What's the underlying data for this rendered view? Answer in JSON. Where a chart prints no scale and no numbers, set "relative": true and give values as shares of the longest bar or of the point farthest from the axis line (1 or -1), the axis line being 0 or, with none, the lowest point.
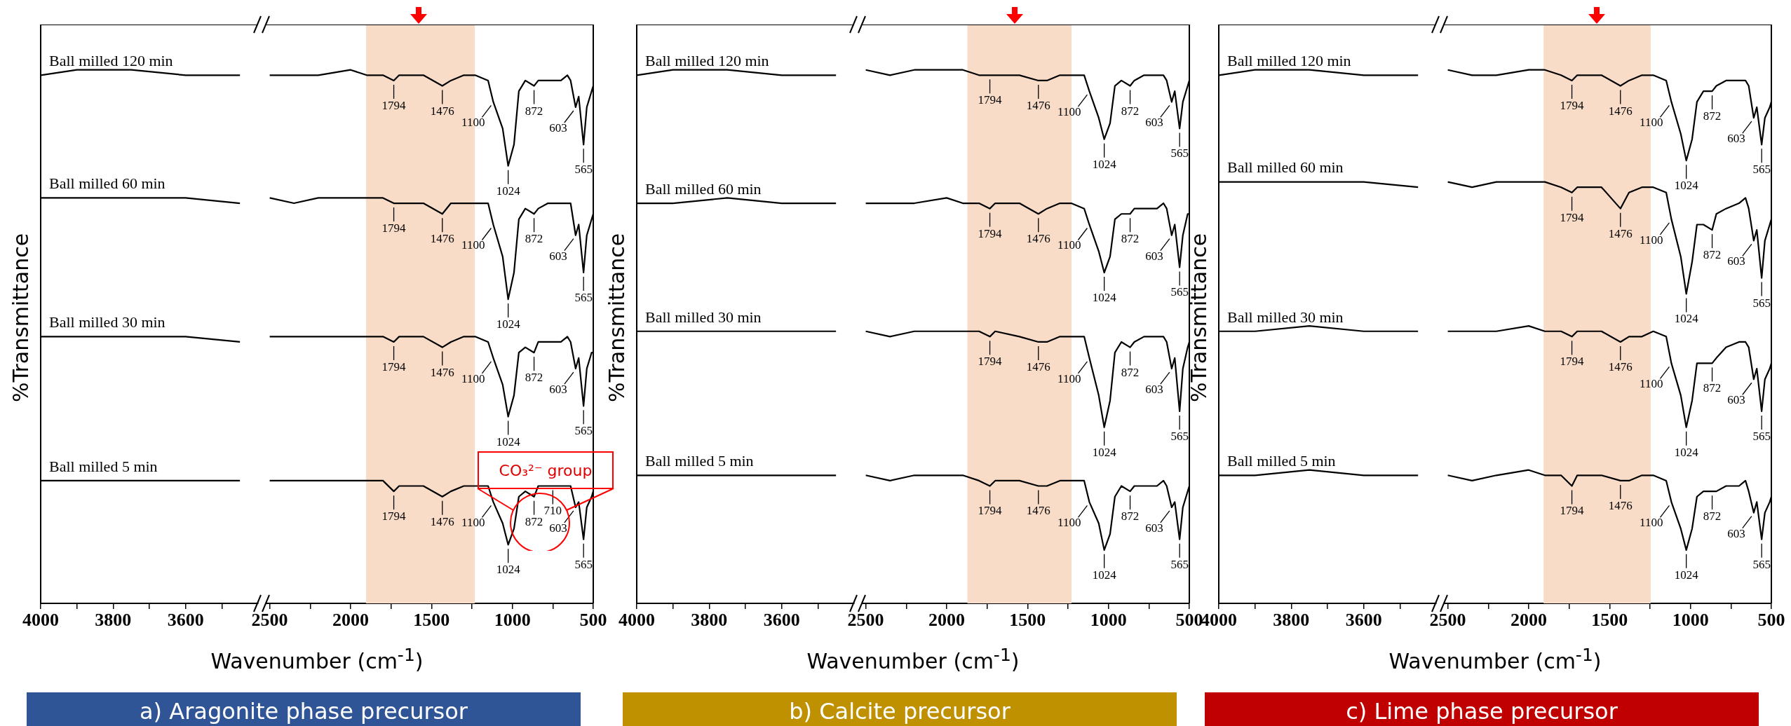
{
  "chart_data": [
    {
      "type": "line",
      "relative": true,
      "marker": "none",
      "ylabel": "%Transmittance",
      "x": [
        4000,
        3900,
        3750,
        3600,
        3450
      ],
      "xlim": [
        4000,
        3400
      ],
      "xticks": [
        4000,
        {
          "value": 3900,
          "label": null
        },
        3800,
        {
          "value": 3700,
          "label": null
        },
        3600,
        {
          "value": 3500,
          "label": null
        }
      ],
      "series": [
        {
          "name": "Ball milled 120 min",
          "color": "#000000",
          "values": [
            0.99,
            1.0,
            1.0,
            0.99,
            0.99
          ]
        },
        {
          "name": "Ball milled 60 min",
          "color": "#000000",
          "values": [
            0.76,
            0.76,
            0.76,
            0.76,
            0.75
          ]
        },
        {
          "name": "Ball milled 30 min",
          "color": "#000000",
          "values": [
            0.5,
            0.5,
            0.5,
            0.5,
            0.49
          ]
        },
        {
          "name": "Ball milled 5 min",
          "color": "#000000",
          "values": [
            0.23,
            0.23,
            0.23,
            0.23,
            0.23
          ]
        }
      ]
    },
    {
      "type": "line",
      "relative": true,
      "marker": "none",
      "title": "a) Aragonite phase precursor",
      "xlabel": "Wavenumber (cm$^{-1}$)",
      "x": [
        2500,
        2350,
        2200,
        2000,
        1900,
        1800,
        1733,
        1700,
        1550,
        1433,
        1380,
        1300,
        1230,
        1150,
        1118,
        1060,
        1026,
        990,
        960,
        920,
        866,
        840,
        780,
        700,
        660,
        640,
        609,
        590,
        560,
        540,
        510,
        500
      ],
      "xlim": [
        2520,
        500
      ],
      "xticks": [
        2500,
        {
          "value": 2250,
          "label": null
        },
        2000,
        {
          "value": 1750,
          "label": null
        },
        1500,
        {
          "value": 1250,
          "label": null
        },
        1000,
        {
          "value": 750,
          "label": null
        },
        500
      ],
      "bands": [
        {
          "axis": "x",
          "from": 1905,
          "to": 1232,
          "color": "#f8dcc8"
        }
      ],
      "series": [
        {
          "color": "#000000",
          "values": [
            0.99,
            0.99,
            0.99,
            1.0,
            0.99,
            0.99,
            0.98,
            0.99,
            0.99,
            0.97,
            0.98,
            0.99,
            0.99,
            0.98,
            0.94,
            0.89,
            0.82,
            0.86,
            0.96,
            0.98,
            0.97,
            0.98,
            0.98,
            0.98,
            0.99,
            0.98,
            0.93,
            0.95,
            0.86,
            0.93,
            0.96,
            0.97
          ]
        },
        {
          "color": "#000000",
          "values": [
            0.76,
            0.75,
            0.76,
            0.76,
            0.76,
            0.76,
            0.75,
            0.75,
            0.75,
            0.73,
            0.75,
            0.75,
            0.75,
            0.75,
            0.71,
            0.65,
            0.57,
            0.62,
            0.72,
            0.74,
            0.73,
            0.74,
            0.75,
            0.75,
            0.75,
            0.75,
            0.69,
            0.71,
            0.62,
            0.69,
            0.72,
            0.73
          ]
        },
        {
          "color": "#000000",
          "values": [
            0.5,
            0.5,
            0.5,
            0.5,
            0.5,
            0.5,
            0.49,
            0.5,
            0.5,
            0.48,
            0.49,
            0.5,
            0.5,
            0.49,
            0.46,
            0.41,
            0.35,
            0.39,
            0.47,
            0.48,
            0.47,
            0.49,
            0.49,
            0.49,
            0.5,
            0.49,
            0.44,
            0.46,
            0.37,
            0.44,
            0.47,
            0.47
          ]
        },
        {
          "color": "#000000",
          "values": [
            0.23,
            0.23,
            0.23,
            0.23,
            0.23,
            0.23,
            0.21,
            0.22,
            0.22,
            0.2,
            0.21,
            0.22,
            0.22,
            0.22,
            0.19,
            0.15,
            0.11,
            0.14,
            0.2,
            0.21,
            0.2,
            0.22,
            0.22,
            0.22,
            0.22,
            0.22,
            0.18,
            0.19,
            0.12,
            0.18,
            0.2,
            0.21
          ]
        }
      ],
      "annotations": [
        {
          "text": "1794",
          "x": 1733,
          "y": 0.98
        },
        {
          "text": "1476",
          "x": 1433,
          "y": 0.97
        },
        {
          "text": "1100",
          "x": 1118,
          "y": 0.94
        },
        {
          "text": "1024",
          "x": 1026,
          "y": 0.82
        },
        {
          "text": "872",
          "x": 866,
          "y": 0.97
        },
        {
          "text": "603",
          "x": 609,
          "y": 0.93
        },
        {
          "text": "565",
          "x": 560,
          "y": 0.86
        },
        {
          "text": "1794",
          "x": 1733,
          "y": 0.75
        },
        {
          "text": "1476",
          "x": 1433,
          "y": 0.73
        },
        {
          "text": "1100",
          "x": 1118,
          "y": 0.71
        },
        {
          "text": "1024",
          "x": 1026,
          "y": 0.57
        },
        {
          "text": "872",
          "x": 866,
          "y": 0.73
        },
        {
          "text": "603",
          "x": 609,
          "y": 0.69
        },
        {
          "text": "565",
          "x": 560,
          "y": 0.62
        },
        {
          "text": "1794",
          "x": 1733,
          "y": 0.49
        },
        {
          "text": "1476",
          "x": 1433,
          "y": 0.48
        },
        {
          "text": "1100",
          "x": 1118,
          "y": 0.46
        },
        {
          "text": "1024",
          "x": 1026,
          "y": 0.35
        },
        {
          "text": "872",
          "x": 866,
          "y": 0.47
        },
        {
          "text": "603",
          "x": 609,
          "y": 0.44
        },
        {
          "text": "565",
          "x": 560,
          "y": 0.37
        },
        {
          "text": "1794",
          "x": 1733,
          "y": 0.21
        },
        {
          "text": "1476",
          "x": 1433,
          "y": 0.2
        },
        {
          "text": "1100",
          "x": 1118,
          "y": 0.19
        },
        {
          "text": "1024",
          "x": 1026,
          "y": 0.11
        },
        {
          "text": "872",
          "x": 866,
          "y": 0.2
        },
        {
          "text": "710",
          "x": 750,
          "y": 0.22
        },
        {
          "text": "603",
          "x": 609,
          "y": 0.18
        },
        {
          "text": "565",
          "x": 560,
          "y": 0.12
        },
        "CO₃²⁻ group"
      ]
    },
    {
      "type": "line",
      "relative": true,
      "marker": "none",
      "ylabel": "%Transmittance",
      "x": [
        4000,
        3900,
        3750,
        3600,
        3450
      ],
      "xlim": [
        4000,
        3400
      ],
      "xticks": [
        4000,
        {
          "value": 3900,
          "label": null
        },
        3800,
        {
          "value": 3700,
          "label": null
        },
        3600,
        {
          "value": 3500,
          "label": null
        }
      ],
      "series": [
        {
          "name": "Ball milled 120 min",
          "color": "#000000",
          "values": [
            0.99,
            1.0,
            1.0,
            0.99,
            0.99
          ]
        },
        {
          "name": "Ball milled 60 min",
          "color": "#000000",
          "values": [
            0.75,
            0.75,
            0.76,
            0.75,
            0.75
          ]
        },
        {
          "name": "Ball milled 30 min",
          "color": "#000000",
          "values": [
            0.51,
            0.51,
            0.51,
            0.51,
            0.51
          ]
        },
        {
          "name": "Ball milled 5 min",
          "color": "#000000",
          "values": [
            0.24,
            0.24,
            0.24,
            0.24,
            0.24
          ]
        }
      ]
    },
    {
      "type": "line",
      "relative": true,
      "marker": "none",
      "title": "b) Calcite precursor",
      "xlabel": "Wavenumber (cm$^{-1}$)",
      "x": [
        2500,
        2350,
        2200,
        2000,
        1900,
        1800,
        1733,
        1700,
        1550,
        1433,
        1380,
        1300,
        1230,
        1150,
        1118,
        1060,
        1026,
        990,
        960,
        920,
        866,
        840,
        780,
        700,
        660,
        640,
        609,
        590,
        560,
        540,
        510,
        500
      ],
      "xlim": [
        2520,
        500
      ],
      "xticks": [
        2500,
        {
          "value": 2250,
          "label": null
        },
        2000,
        {
          "value": 1750,
          "label": null
        },
        1500,
        {
          "value": 1250,
          "label": null
        },
        1000,
        {
          "value": 750,
          "label": null
        },
        500
      ],
      "bands": [
        {
          "axis": "x",
          "from": 1872,
          "to": 1228,
          "color": "#f8dcc8"
        }
      ],
      "series": [
        {
          "color": "#000000",
          "values": [
            1.0,
            0.99,
            1.0,
            1.0,
            1.0,
            0.99,
            0.99,
            0.99,
            0.99,
            0.98,
            0.98,
            0.99,
            0.99,
            0.99,
            0.96,
            0.91,
            0.87,
            0.9,
            0.97,
            0.98,
            0.97,
            0.98,
            0.99,
            0.99,
            0.99,
            0.98,
            0.94,
            0.96,
            0.89,
            0.94,
            0.97,
            0.98
          ]
        },
        {
          "color": "#000000",
          "values": [
            0.75,
            0.75,
            0.75,
            0.76,
            0.75,
            0.75,
            0.74,
            0.75,
            0.75,
            0.73,
            0.74,
            0.75,
            0.75,
            0.74,
            0.71,
            0.66,
            0.62,
            0.65,
            0.72,
            0.73,
            0.73,
            0.74,
            0.74,
            0.74,
            0.75,
            0.74,
            0.69,
            0.71,
            0.63,
            0.69,
            0.73,
            0.73
          ]
        },
        {
          "color": "#000000",
          "values": [
            0.51,
            0.5,
            0.51,
            0.51,
            0.51,
            0.51,
            0.5,
            0.51,
            0.5,
            0.49,
            0.49,
            0.5,
            0.5,
            0.5,
            0.46,
            0.39,
            0.33,
            0.38,
            0.47,
            0.49,
            0.48,
            0.49,
            0.5,
            0.5,
            0.5,
            0.49,
            0.44,
            0.46,
            0.36,
            0.44,
            0.48,
            0.49
          ]
        },
        {
          "color": "#000000",
          "values": [
            0.24,
            0.23,
            0.24,
            0.24,
            0.24,
            0.23,
            0.22,
            0.23,
            0.23,
            0.22,
            0.22,
            0.23,
            0.23,
            0.23,
            0.19,
            0.15,
            0.1,
            0.13,
            0.2,
            0.22,
            0.21,
            0.22,
            0.22,
            0.22,
            0.23,
            0.22,
            0.18,
            0.19,
            0.12,
            0.18,
            0.21,
            0.22
          ]
        }
      ],
      "annotations": [
        {
          "text": "1794",
          "x": 1733,
          "y": 0.99
        },
        {
          "text": "1476",
          "x": 1433,
          "y": 0.98
        },
        {
          "text": "1100",
          "x": 1118,
          "y": 0.96
        },
        {
          "text": "1024",
          "x": 1026,
          "y": 0.87
        },
        {
          "text": "872",
          "x": 866,
          "y": 0.97
        },
        {
          "text": "603",
          "x": 609,
          "y": 0.94
        },
        {
          "text": "565",
          "x": 560,
          "y": 0.89
        },
        {
          "text": "1794",
          "x": 1733,
          "y": 0.74
        },
        {
          "text": "1476",
          "x": 1433,
          "y": 0.73
        },
        {
          "text": "1100",
          "x": 1118,
          "y": 0.71
        },
        {
          "text": "1024",
          "x": 1026,
          "y": 0.62
        },
        {
          "text": "872",
          "x": 866,
          "y": 0.73
        },
        {
          "text": "603",
          "x": 609,
          "y": 0.69
        },
        {
          "text": "565",
          "x": 560,
          "y": 0.63
        },
        {
          "text": "1794",
          "x": 1733,
          "y": 0.5
        },
        {
          "text": "1476",
          "x": 1433,
          "y": 0.49
        },
        {
          "text": "1100",
          "x": 1118,
          "y": 0.46
        },
        {
          "text": "1024",
          "x": 1026,
          "y": 0.33
        },
        {
          "text": "872",
          "x": 866,
          "y": 0.48
        },
        {
          "text": "603",
          "x": 609,
          "y": 0.44
        },
        {
          "text": "565",
          "x": 560,
          "y": 0.36
        },
        {
          "text": "1794",
          "x": 1733,
          "y": 0.22
        },
        {
          "text": "1476",
          "x": 1433,
          "y": 0.22
        },
        {
          "text": "1100",
          "x": 1118,
          "y": 0.19
        },
        {
          "text": "1024",
          "x": 1026,
          "y": 0.1
        },
        {
          "text": "872",
          "x": 866,
          "y": 0.21
        },
        {
          "text": "603",
          "x": 609,
          "y": 0.18
        },
        {
          "text": "565",
          "x": 560,
          "y": 0.12
        }
      ]
    },
    {
      "type": "line",
      "relative": true,
      "marker": "none",
      "ylabel": "%Transmittance",
      "x": [
        4000,
        3900,
        3750,
        3600,
        3450
      ],
      "xlim": [
        4000,
        3400
      ],
      "xticks": [
        4000,
        {
          "value": 3900,
          "label": null
        },
        3800,
        {
          "value": 3700,
          "label": null
        },
        3600,
        {
          "value": 3500,
          "label": null
        }
      ],
      "series": [
        {
          "name": "Ball milled 120 min",
          "color": "#000000",
          "values": [
            0.99,
            1.0,
            1.0,
            0.99,
            0.99
          ]
        },
        {
          "name": "Ball milled 60 min",
          "color": "#000000",
          "values": [
            0.79,
            0.79,
            0.79,
            0.79,
            0.78
          ]
        },
        {
          "name": "Ball milled 30 min",
          "color": "#000000",
          "values": [
            0.51,
            0.51,
            0.52,
            0.51,
            0.51
          ]
        },
        {
          "name": "Ball milled 5 min",
          "color": "#000000",
          "values": [
            0.24,
            0.24,
            0.25,
            0.24,
            0.24
          ]
        }
      ]
    },
    {
      "type": "line",
      "relative": true,
      "marker": "none",
      "title": "c) Lime phase precursor",
      "xlabel": "Wavenumber (cm$^{-1}$)",
      "x": [
        2500,
        2350,
        2200,
        2000,
        1900,
        1800,
        1733,
        1700,
        1550,
        1433,
        1380,
        1300,
        1230,
        1150,
        1118,
        1060,
        1026,
        990,
        960,
        920,
        866,
        840,
        780,
        700,
        660,
        640,
        609,
        590,
        560,
        540,
        510,
        500
      ],
      "xlim": [
        2520,
        500
      ],
      "xticks": [
        2500,
        {
          "value": 2250,
          "label": null
        },
        2000,
        {
          "value": 1750,
          "label": null
        },
        1500,
        {
          "value": 1250,
          "label": null
        },
        1000,
        {
          "value": 750,
          "label": null
        },
        500
      ],
      "bands": [
        {
          "axis": "x",
          "from": 1908,
          "to": 1246,
          "color": "#f8dcc8"
        }
      ],
      "series": [
        {
          "color": "#000000",
          "values": [
            1.0,
            0.99,
            0.99,
            1.0,
            1.0,
            0.99,
            0.98,
            0.99,
            0.99,
            0.97,
            0.98,
            0.99,
            0.99,
            0.98,
            0.94,
            0.88,
            0.83,
            0.87,
            0.94,
            0.96,
            0.96,
            0.97,
            0.98,
            0.98,
            0.98,
            0.97,
            0.91,
            0.93,
            0.86,
            0.91,
            0.93,
            0.94
          ]
        },
        {
          "color": "#000000",
          "values": [
            0.79,
            0.78,
            0.79,
            0.79,
            0.79,
            0.78,
            0.77,
            0.78,
            0.78,
            0.74,
            0.77,
            0.78,
            0.78,
            0.77,
            0.72,
            0.65,
            0.58,
            0.64,
            0.71,
            0.71,
            0.7,
            0.73,
            0.74,
            0.75,
            0.76,
            0.74,
            0.68,
            0.7,
            0.61,
            0.68,
            0.71,
            0.72
          ]
        },
        {
          "color": "#000000",
          "values": [
            0.51,
            0.51,
            0.51,
            0.52,
            0.51,
            0.51,
            0.5,
            0.51,
            0.51,
            0.49,
            0.5,
            0.5,
            0.51,
            0.5,
            0.45,
            0.39,
            0.33,
            0.38,
            0.45,
            0.45,
            0.45,
            0.46,
            0.48,
            0.49,
            0.49,
            0.48,
            0.42,
            0.44,
            0.36,
            0.42,
            0.44,
            0.45
          ]
        },
        {
          "color": "#000000",
          "values": [
            0.24,
            0.23,
            0.24,
            0.25,
            0.24,
            0.24,
            0.22,
            0.24,
            0.24,
            0.23,
            0.23,
            0.24,
            0.24,
            0.23,
            0.19,
            0.14,
            0.1,
            0.14,
            0.2,
            0.21,
            0.21,
            0.21,
            0.22,
            0.22,
            0.23,
            0.21,
            0.17,
            0.19,
            0.12,
            0.17,
            0.19,
            0.2
          ]
        }
      ],
      "annotations": [
        {
          "text": "1794",
          "x": 1733,
          "y": 0.98
        },
        {
          "text": "1476",
          "x": 1433,
          "y": 0.97
        },
        {
          "text": "1100",
          "x": 1118,
          "y": 0.94
        },
        {
          "text": "1024",
          "x": 1026,
          "y": 0.83
        },
        {
          "text": "872",
          "x": 866,
          "y": 0.96
        },
        {
          "text": "603",
          "x": 609,
          "y": 0.91
        },
        {
          "text": "565",
          "x": 560,
          "y": 0.86
        },
        {
          "text": "1794",
          "x": 1733,
          "y": 0.77
        },
        {
          "text": "1476",
          "x": 1433,
          "y": 0.74
        },
        {
          "text": "1100",
          "x": 1118,
          "y": 0.72
        },
        {
          "text": "1024",
          "x": 1026,
          "y": 0.58
        },
        {
          "text": "872",
          "x": 866,
          "y": 0.7
        },
        {
          "text": "603",
          "x": 609,
          "y": 0.68
        },
        {
          "text": "565",
          "x": 560,
          "y": 0.61
        },
        {
          "text": "1794",
          "x": 1733,
          "y": 0.5
        },
        {
          "text": "1476",
          "x": 1433,
          "y": 0.49
        },
        {
          "text": "1100",
          "x": 1118,
          "y": 0.45
        },
        {
          "text": "1024",
          "x": 1026,
          "y": 0.33
        },
        {
          "text": "872",
          "x": 866,
          "y": 0.45
        },
        {
          "text": "603",
          "x": 609,
          "y": 0.42
        },
        {
          "text": "565",
          "x": 560,
          "y": 0.36
        },
        {
          "text": "1794",
          "x": 1733,
          "y": 0.22
        },
        {
          "text": "1476",
          "x": 1433,
          "y": 0.23
        },
        {
          "text": "1100",
          "x": 1118,
          "y": 0.19
        },
        {
          "text": "1024",
          "x": 1026,
          "y": 0.1
        },
        {
          "text": "872",
          "x": 866,
          "y": 0.21
        },
        {
          "text": "603",
          "x": 609,
          "y": 0.17
        },
        {
          "text": "565",
          "x": 560,
          "y": 0.12
        }
      ]
    }
  ]
}
